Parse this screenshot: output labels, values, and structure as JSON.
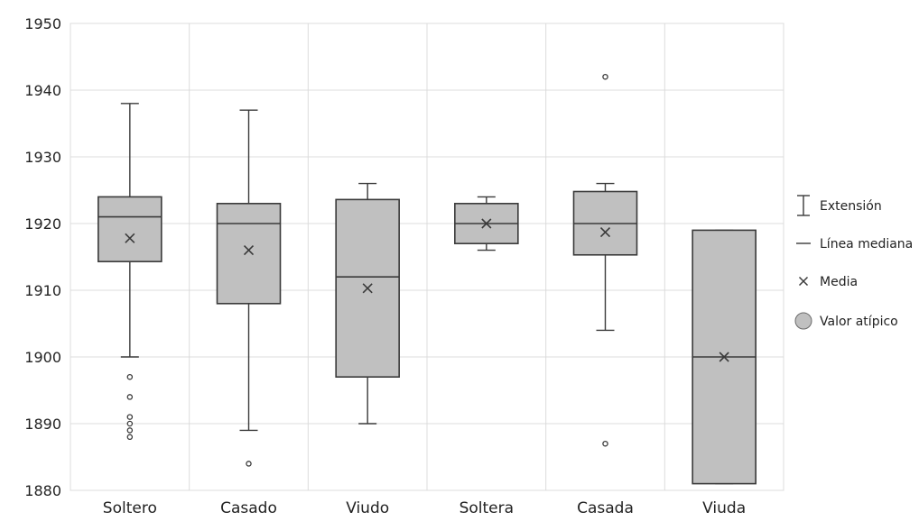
{
  "chart_data": {
    "type": "box",
    "title": "",
    "xlabel": "",
    "ylabel": "",
    "ylim": [
      1880,
      1950
    ],
    "yticks": [
      1880,
      1890,
      1900,
      1910,
      1920,
      1930,
      1940,
      1950
    ],
    "grid": true,
    "legend_position": "right",
    "categories": [
      "Soltero",
      "Casado",
      "Viudo",
      "Soltera",
      "Casada",
      "Viuda"
    ],
    "boxes": [
      {
        "category": "Soltero",
        "min": 1900,
        "q1": 1914.3,
        "median": 1921,
        "q3": 1924,
        "max": 1938,
        "mean": 1917.8,
        "outliers": [
          1897,
          1894,
          1891,
          1890,
          1889,
          1888
        ]
      },
      {
        "category": "Casado",
        "min": 1889,
        "q1": 1908,
        "median": 1920,
        "q3": 1923,
        "max": 1937,
        "mean": 1916,
        "outliers": [
          1884
        ]
      },
      {
        "category": "Viudo",
        "min": 1890,
        "q1": 1897,
        "median": 1912,
        "q3": 1923.6,
        "max": 1926,
        "mean": 1910.3,
        "outliers": []
      },
      {
        "category": "Soltera",
        "min": 1916,
        "q1": 1917,
        "median": 1920,
        "q3": 1923,
        "max": 1924,
        "mean": 1920,
        "outliers": []
      },
      {
        "category": "Casada",
        "min": 1904,
        "q1": 1915.3,
        "median": 1920,
        "q3": 1924.8,
        "max": 1926,
        "mean": 1918.7,
        "outliers": [
          1942,
          1887
        ]
      },
      {
        "category": "Viuda",
        "min": 1881,
        "q1": 1881,
        "median": 1900,
        "q3": 1919,
        "max": 1919,
        "mean": 1900,
        "outliers": []
      }
    ],
    "legend": [
      {
        "symbol": "whisker",
        "label": "Extensión"
      },
      {
        "symbol": "median-line",
        "label": "Línea mediana"
      },
      {
        "symbol": "mean-x",
        "label": "Media"
      },
      {
        "symbol": "outlier-dot",
        "label": "Valor atípico"
      }
    ],
    "colors": {
      "box_fill": "#c0c0c0",
      "stroke": "#3a3a3a",
      "grid": "#dcdcdc",
      "text": "#222222"
    }
  }
}
